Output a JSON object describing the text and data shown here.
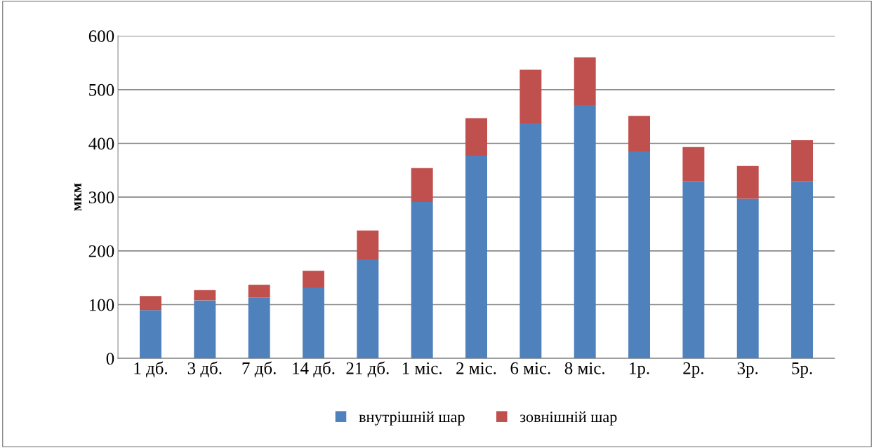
{
  "chart_data": {
    "type": "bar",
    "stacked": true,
    "ylabel": "мкм",
    "categories": [
      "1 дб.",
      "3 дб.",
      "7 дб.",
      "14 дб.",
      "21 дб.",
      "1 міс.",
      "2 міс.",
      "6 міс.",
      "8 міс.",
      "1р.",
      "2р.",
      "3р.",
      "5р."
    ],
    "series": [
      {
        "name": "внутрішній шар",
        "color": "#4f81bd",
        "values": [
          90,
          108,
          113,
          132,
          184,
          291,
          377,
          437,
          471,
          385,
          330,
          297,
          330
        ]
      },
      {
        "name": "зовнішній шар",
        "color": "#c0504d",
        "values": [
          26,
          19,
          24,
          31,
          54,
          63,
          70,
          100,
          89,
          66,
          63,
          61,
          76
        ]
      }
    ],
    "ylim": [
      0,
      600
    ],
    "yticks": [
      0,
      100,
      200,
      300,
      400,
      500,
      600
    ],
    "grid": "y",
    "legend": "bottom"
  }
}
